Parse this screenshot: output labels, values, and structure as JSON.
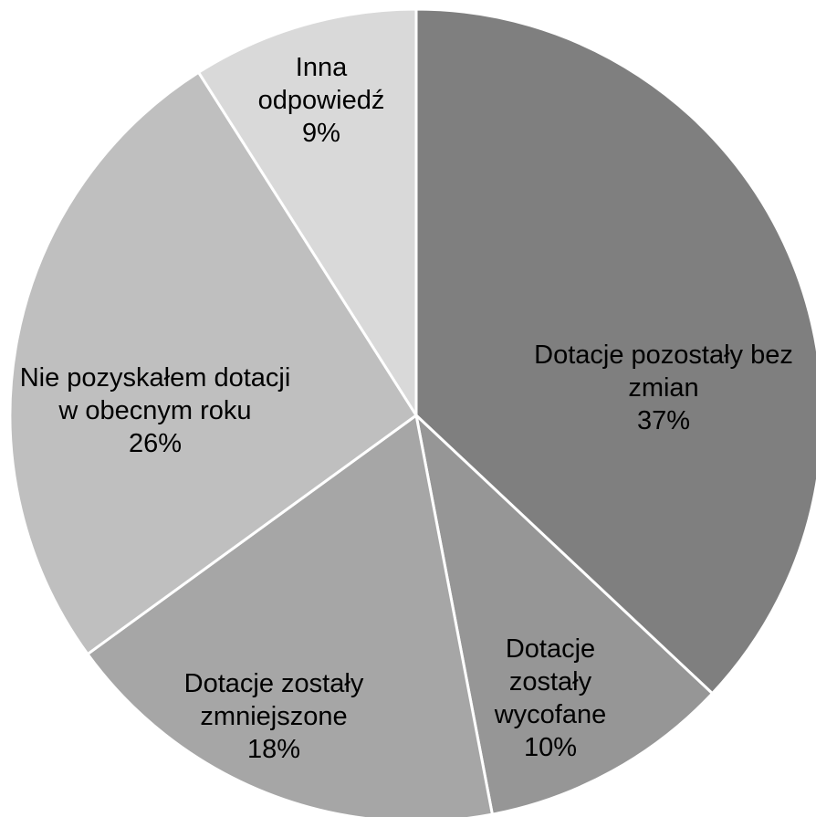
{
  "chart_data": {
    "type": "pie",
    "categories": [
      "Dotacje pozostały bez zmian",
      "Dotacje zostały wycofane",
      "Dotacje zostały zmniejszone",
      "Nie pozyskałem dotacji w obecnym roku",
      "Inna odpowiedź"
    ],
    "values": [
      37,
      10,
      18,
      26,
      9
    ],
    "value_labels": [
      "37%",
      "10%",
      "18%",
      "26%",
      "9%"
    ],
    "colors": [
      "#7f7f7f",
      "#969696",
      "#a6a6a6",
      "#bfbfbf",
      "#d9d9d9"
    ]
  }
}
